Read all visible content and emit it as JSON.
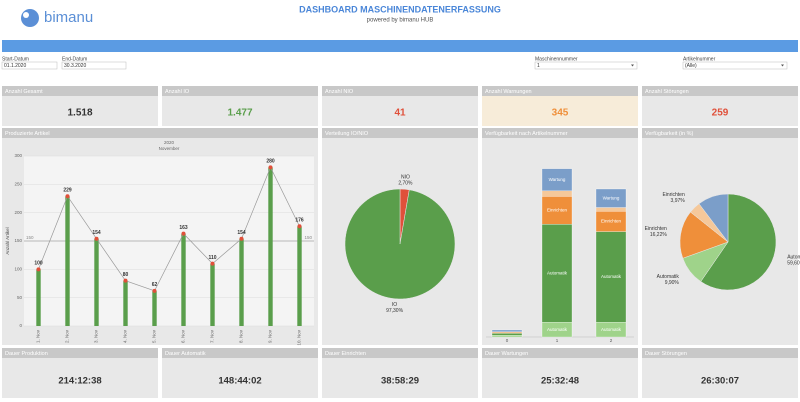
{
  "header": {
    "logo": "bimanu",
    "title": "DASHBOARD MASCHINENDATENERFASSUNG",
    "subtitle": "powered by bimanu HUB"
  },
  "filters": [
    {
      "label": "Start-Datum",
      "value": "01.1.2020"
    },
    {
      "label": "End-Datum",
      "value": "30.3.2020"
    },
    {
      "label": "Maschinennummer",
      "value": "1"
    },
    {
      "label": "Artikelnummer",
      "value": "(Alle)"
    }
  ],
  "kpis": [
    {
      "label": "Anzahl Gesamt",
      "value": "1.518",
      "color": "#333333"
    },
    {
      "label": "Anzahl IO",
      "value": "1.477",
      "color": "#5a9e4b"
    },
    {
      "label": "Anzahl NIO",
      "value": "41",
      "color": "#e0503a"
    },
    {
      "label": "Anzahl Warnungen",
      "value": "345",
      "color": "#ef8f3a",
      "background": "#f7ecd9"
    },
    {
      "label": "Anzahl Störungen",
      "value": "259",
      "color": "#e0503a"
    }
  ],
  "charts": {
    "produced": {
      "type": "bar",
      "title": "Produzierte Artikel",
      "year": "2020",
      "month": "November",
      "y_axis_label": "Anzahl Artikel",
      "categories": [
        "1. Nov",
        "2. Nov",
        "3. Nov",
        "4. Nov",
        "5. Nov",
        "6. Nov",
        "7. Nov",
        "8. Nov",
        "9. Nov",
        "10. Nov"
      ],
      "values": [
        100,
        229,
        154,
        80,
        62,
        163,
        110,
        154,
        280,
        176
      ],
      "color": "#5a9e4b",
      "marker_color": "#e0503a",
      "line_color": "#999999",
      "ylim": [
        0,
        300
      ],
      "yticks": [
        0,
        50,
        100,
        150,
        200,
        250,
        300
      ],
      "grid": true,
      "reference_line": 150
    },
    "io_pie": {
      "type": "pie",
      "title": "Verteilung IO/NIO",
      "labels": [
        "NIO",
        "IO"
      ],
      "values": [
        2.7,
        97.3
      ],
      "value_labels": [
        "2,70%",
        "97,30%"
      ],
      "colors": [
        "#e0503a",
        "#5a9e4b"
      ]
    },
    "availability_bar": {
      "type": "stacked_bar",
      "title": "Verfügbarkeit nach Artikelnummer",
      "categories": [
        "0",
        "1",
        "2"
      ],
      "ylim": [
        0,
        100
      ],
      "series": [
        {
          "name": "Automatik",
          "color": "#9fd38a",
          "values": [
            1,
            8,
            8
          ]
        },
        {
          "name": "Automatik",
          "color": "#5a9e4b",
          "values": [
            1,
            53,
            49
          ]
        },
        {
          "name": "Einrichten",
          "color": "#ef8f3a",
          "values": [
            0.5,
            15,
            11
          ]
        },
        {
          "name": "Einrichten",
          "color": "#f5c89a",
          "values": [
            0.3,
            3,
            2
          ]
        },
        {
          "name": "Wartung",
          "color": "#7b9ec9",
          "values": [
            1,
            12,
            10
          ]
        }
      ]
    },
    "availability_pie": {
      "type": "pie",
      "title": "Verfügbarkeit (in %)",
      "labels": [
        "Automatik",
        "Automatik",
        "Einrichten",
        "Einrichten",
        null
      ],
      "values": [
        59.6,
        9.9,
        16.22,
        3.97,
        10.31
      ],
      "value_labels": [
        "59,60%",
        "9,90%",
        "16,22%",
        "3,97%",
        null
      ],
      "colors": [
        "#5a9e4b",
        "#9fd38a",
        "#ef8f3a",
        "#f5c89a",
        "#7b9ec9"
      ]
    }
  },
  "durations": [
    {
      "label": "Dauer Produktion",
      "value": "214:12:38"
    },
    {
      "label": "Dauer Automatik",
      "value": "148:44:02"
    },
    {
      "label": "Dauer Einrichten",
      "value": "38:58:29"
    },
    {
      "label": "Dauer Wartungen",
      "value": "25:32:48"
    },
    {
      "label": "Dauer Störungen",
      "value": "26:30:07"
    }
  ]
}
